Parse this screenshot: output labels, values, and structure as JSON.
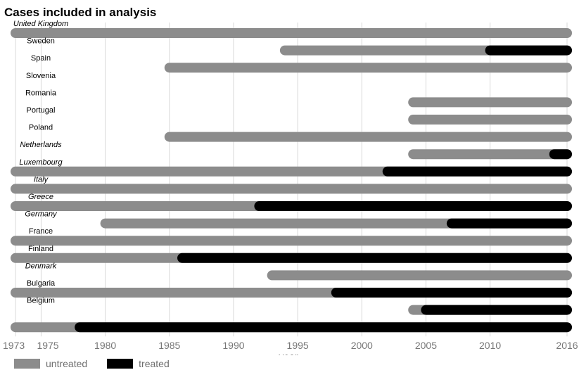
{
  "chart_data": {
    "type": "timeline",
    "title": "Cases included in analysis",
    "xlabel": "year",
    "ylabel": "",
    "xlim": [
      1973,
      2016
    ],
    "xticks": [
      1973,
      1975,
      1980,
      1985,
      1990,
      1995,
      2000,
      2005,
      2010,
      2016
    ],
    "grid": true,
    "legend_position": "bottom-left",
    "legend": [
      {
        "label": "untreated",
        "color": "#8c8c8c"
      },
      {
        "label": "treated",
        "color": "#000000"
      }
    ],
    "rows": [
      {
        "country": "United Kingdom",
        "italic": true,
        "start": 1973,
        "treated_from": null,
        "end": 2016
      },
      {
        "country": "Sweden",
        "italic": false,
        "start": 1994,
        "treated_from": 2010,
        "end": 2016
      },
      {
        "country": "Spain",
        "italic": false,
        "start": 1985,
        "treated_from": null,
        "end": 2016
      },
      {
        "country": "Slovenia",
        "italic": false,
        "start": null,
        "treated_from": null,
        "end": null
      },
      {
        "country": "Romania",
        "italic": false,
        "start": 2004,
        "treated_from": null,
        "end": 2016
      },
      {
        "country": "Portugal",
        "italic": false,
        "start": 2004,
        "treated_from": null,
        "end": 2016
      },
      {
        "country": "Poland",
        "italic": false,
        "start": 1985,
        "treated_from": null,
        "end": 2016
      },
      {
        "country": "Netherlands",
        "italic": true,
        "start": 2004,
        "treated_from": 2015,
        "end": 2016
      },
      {
        "country": "Luxembourg",
        "italic": true,
        "start": 1973,
        "treated_from": 2002,
        "end": 2016
      },
      {
        "country": "Italy",
        "italic": true,
        "start": 1973,
        "treated_from": null,
        "end": 2016
      },
      {
        "country": "Greece",
        "italic": true,
        "start": 1973,
        "treated_from": 1992,
        "end": 2016
      },
      {
        "country": "Germany",
        "italic": true,
        "start": 1980,
        "treated_from": 2007,
        "end": 2016
      },
      {
        "country": "France",
        "italic": false,
        "start": 1973,
        "treated_from": null,
        "end": 2016
      },
      {
        "country": "Finland",
        "italic": false,
        "start": 1973,
        "treated_from": 1986,
        "end": 2016
      },
      {
        "country": "Denmark",
        "italic": true,
        "start": 1993,
        "treated_from": null,
        "end": 2016
      },
      {
        "country": "Bulgaria",
        "italic": false,
        "start": 1973,
        "treated_from": 1998,
        "end": 2016
      },
      {
        "country": "Belgium",
        "italic": false,
        "start": 2004,
        "treated_from": 2005,
        "end": 2016
      },
      {
        "country": "",
        "italic": false,
        "start": 1973,
        "treated_from": 1978,
        "end": 2016
      }
    ]
  }
}
